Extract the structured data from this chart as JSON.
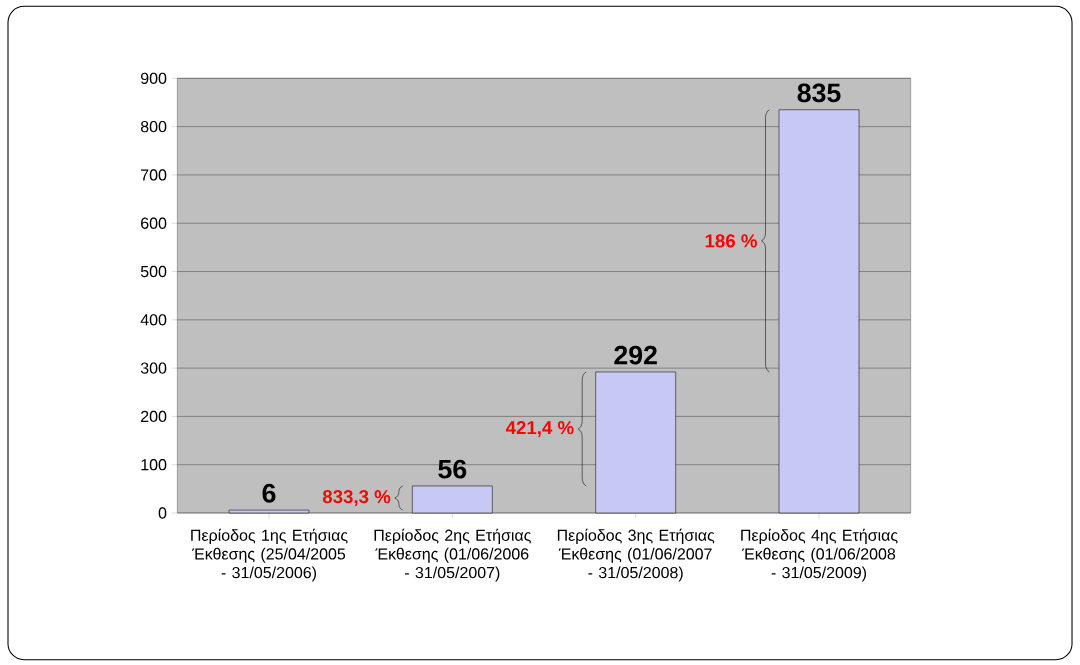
{
  "chart_data": {
    "type": "bar",
    "categories": [
      "Περίοδος 1ης Ετήσιας Έκθεσης (25/04/2005 - 31/05/2006)",
      "Περίοδος 2ης Ετήσιας Έκθεσης (01/06/2006 - 31/05/2007)",
      "Περίοδος 3ης Ετήσιας Έκθεσης (01/06/2007 - 31/05/2008)",
      "Περίοδος 4ης Ετήσιας Έκθεσης (01/06/2008 - 31/05/2009)"
    ],
    "values": [
      6,
      56,
      292,
      835
    ],
    "color": "#c8c8f4",
    "ylim": [
      0,
      900
    ],
    "yticks": [
      0,
      100,
      200,
      300,
      400,
      500,
      600,
      700,
      800,
      900
    ],
    "grid": "y",
    "data_labels": true,
    "annotations": [
      "833,3 %",
      "421,4 %",
      "186 %"
    ]
  }
}
